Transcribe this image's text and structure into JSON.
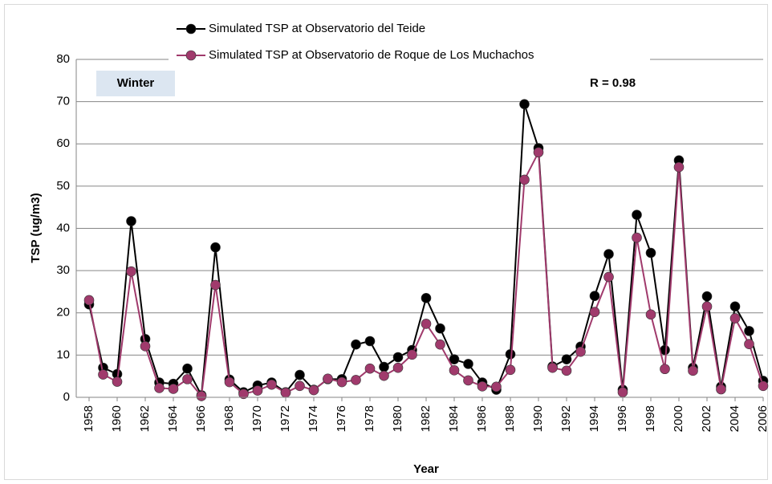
{
  "chart_data": {
    "type": "line",
    "y_label": "TSP (ug/m3)",
    "x_label": "Year",
    "annotations": [
      "Winter",
      "R = 0.98"
    ],
    "x": [
      1958,
      1959,
      1960,
      1961,
      1962,
      1963,
      1964,
      1965,
      1966,
      1967,
      1968,
      1969,
      1970,
      1971,
      1972,
      1973,
      1974,
      1975,
      1976,
      1977,
      1978,
      1979,
      1980,
      1981,
      1982,
      1983,
      1984,
      1985,
      1986,
      1987,
      1988,
      1989,
      1990,
      1991,
      1992,
      1993,
      1994,
      1995,
      1996,
      1997,
      1998,
      1999,
      2000,
      2001,
      2002,
      2003,
      2004,
      2005,
      2006
    ],
    "xlim": [
      1958,
      2006
    ],
    "xticks": [
      1958,
      1960,
      1962,
      1964,
      1966,
      1968,
      1970,
      1972,
      1974,
      1976,
      1978,
      1980,
      1982,
      1984,
      1986,
      1988,
      1990,
      1992,
      1994,
      1996,
      1998,
      2000,
      2002,
      2004,
      2006
    ],
    "ylim": [
      0,
      80
    ],
    "yticks": [
      0,
      10,
      20,
      30,
      40,
      50,
      60,
      70,
      80
    ],
    "grid": true,
    "series": [
      {
        "name": "Simulated TSP at Observatorio del Teide",
        "color": "#000000",
        "values": [
          22,
          7,
          5.5,
          41.7,
          13.8,
          3.5,
          3.2,
          6.8,
          0.5,
          35.5,
          4.2,
          1.2,
          2.8,
          3.5,
          1.2,
          5.3,
          1.8,
          4.3,
          4.3,
          12.5,
          13.3,
          7.2,
          9.5,
          11.2,
          23.5,
          16.3,
          9,
          7.9,
          3.5,
          1.8,
          10.2,
          69.4,
          59,
          7.3,
          9,
          12,
          24,
          33.9,
          1.8,
          43.2,
          34.2,
          11.2,
          56.1,
          7,
          23.9,
          2.5,
          21.5,
          15.7,
          3.9
        ]
      },
      {
        "name": "Simulated TSP at Observatorio de Roque de Los Muchachos",
        "color": "#a03a6c",
        "values": [
          23,
          5.4,
          3.7,
          29.8,
          12.1,
          2.2,
          2,
          4.3,
          0.3,
          26.6,
          3.6,
          0.8,
          1.6,
          3,
          1.1,
          2.7,
          1.7,
          4.4,
          3.6,
          4.1,
          6.8,
          5.1,
          7,
          10.1,
          17.4,
          12.5,
          6.4,
          4,
          2.6,
          2.5,
          6.5,
          51.5,
          58,
          7,
          6.3,
          10.8,
          20.2,
          28.5,
          1.2,
          37.8,
          19.6,
          6.7,
          54.5,
          6.3,
          21.5,
          1.9,
          18.7,
          12.6,
          2.7
        ]
      }
    ]
  }
}
